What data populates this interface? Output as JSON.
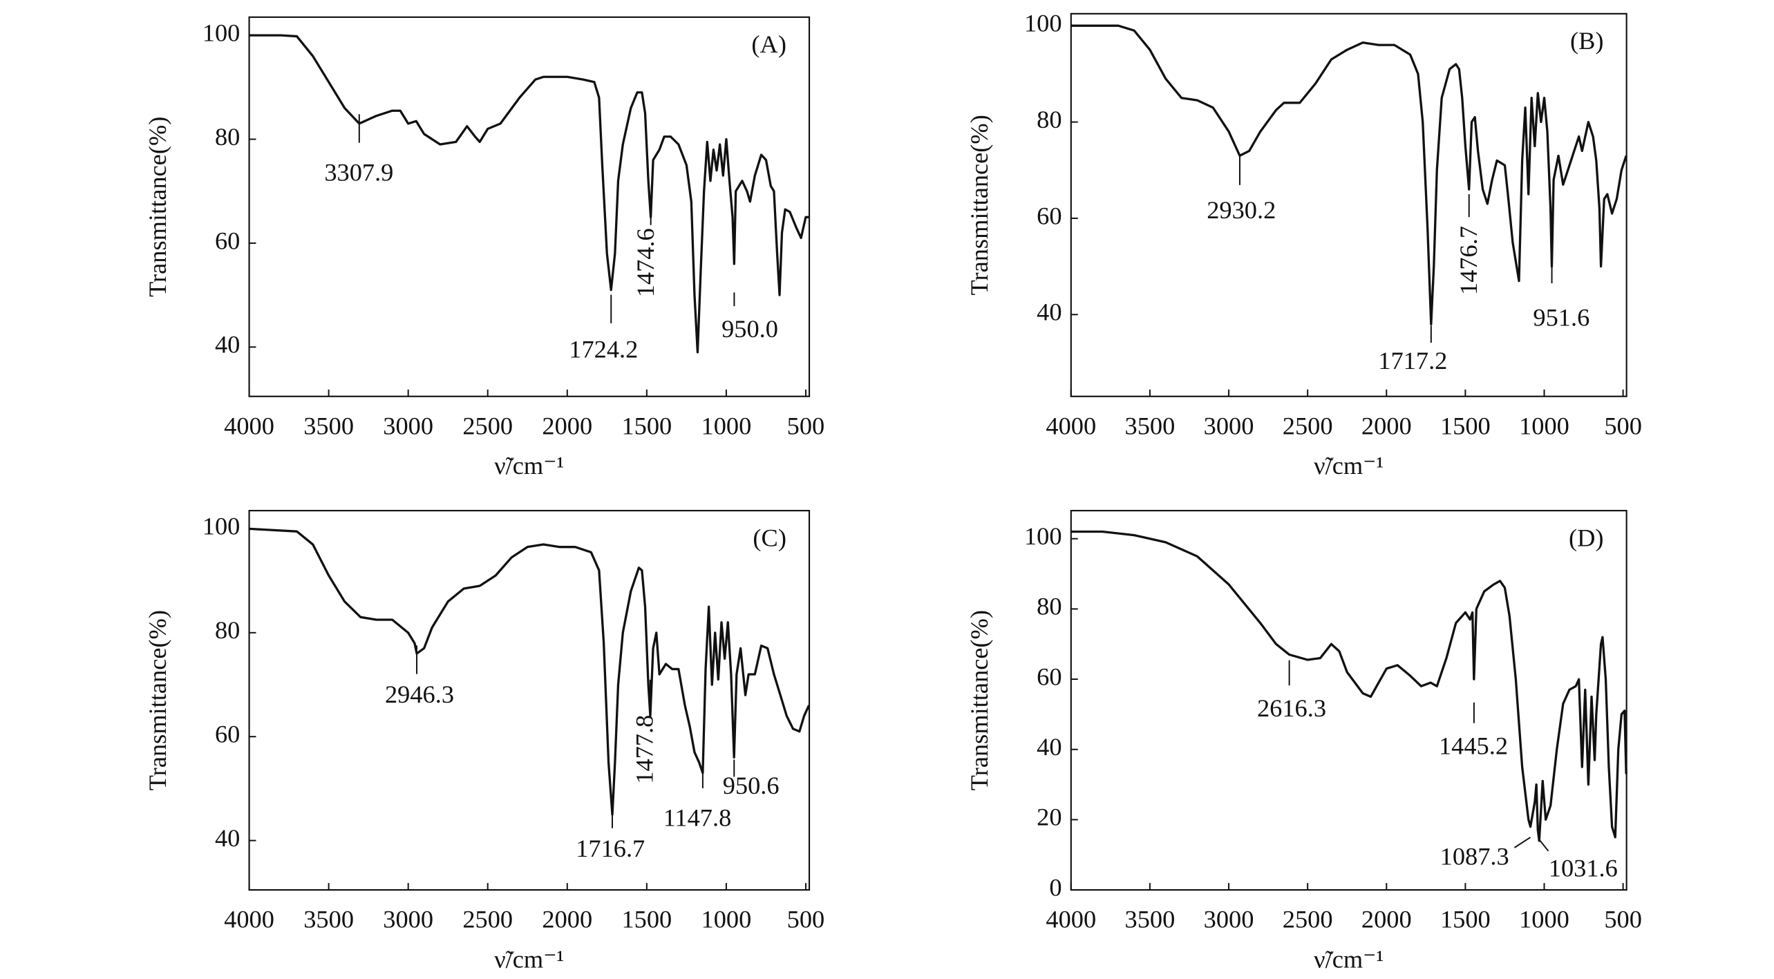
{
  "chart_data": [
    {
      "type": "line",
      "panel_label": "(A)",
      "x_label": "ν̃/cm⁻¹",
      "y_label": "Transmittance(%)",
      "color": "#111111",
      "xlim": [
        4000,
        478
      ],
      "ylim": [
        30.5,
        103.5
      ],
      "xticks": [
        4000,
        3500,
        3000,
        2500,
        2000,
        1500,
        1000,
        500
      ],
      "yticks": [
        40,
        60,
        80,
        100
      ],
      "x": [
        4000,
        3800,
        3700,
        3600,
        3500,
        3400,
        3307.9,
        3200,
        3100,
        3050,
        3000,
        2950,
        2900,
        2800,
        2700,
        2630,
        2580,
        2550,
        2500,
        2420,
        2300,
        2200,
        2150,
        2000,
        1900,
        1830,
        1800,
        1780,
        1750,
        1724.2,
        1700,
        1680,
        1650,
        1600,
        1560,
        1530,
        1510,
        1490,
        1474.6,
        1460,
        1420,
        1390,
        1350,
        1300,
        1250,
        1220,
        1200,
        1180,
        1160,
        1140,
        1120,
        1100,
        1080,
        1060,
        1040,
        1020,
        1000,
        980,
        960,
        950,
        940,
        900,
        870,
        850,
        820,
        780,
        750,
        720,
        700,
        680,
        665,
        650,
        630,
        600,
        560,
        530,
        500,
        480
      ],
      "values": [
        100,
        100,
        99.8,
        96,
        91,
        86,
        83,
        84.5,
        85.5,
        85.5,
        83,
        83.5,
        81,
        79,
        79.5,
        82.5,
        80.5,
        79.5,
        82,
        83,
        88,
        91.5,
        92,
        92,
        91.5,
        91,
        88,
        75,
        58,
        51,
        58,
        72,
        79,
        86,
        89,
        89,
        85,
        72,
        65,
        76,
        78,
        80.5,
        80.5,
        79,
        75,
        68,
        50,
        39,
        55,
        70,
        79.5,
        72,
        78,
        74,
        79,
        73,
        80,
        72,
        65,
        56,
        70,
        72,
        70,
        68,
        73,
        77,
        76,
        71,
        70,
        58,
        50,
        62,
        66.5,
        66,
        63,
        61,
        65,
        65
      ],
      "annotations": [
        {
          "text": "3307.9",
          "x": 3307.9
        },
        {
          "text": "1724.2",
          "x": 1724.2
        },
        {
          "text": "1474.6",
          "x": 1474.6
        },
        {
          "text": "950.0",
          "x": 950.0
        }
      ]
    },
    {
      "type": "line",
      "panel_label": "(B)",
      "x_label": "ν̃/cm⁻¹",
      "y_label": "Transmittance(%)",
      "color": "#111111",
      "xlim": [
        4000,
        478
      ],
      "ylim": [
        23,
        102.5
      ],
      "xticks": [
        4000,
        3500,
        3000,
        2500,
        2000,
        1500,
        1000,
        500
      ],
      "yticks": [
        40,
        60,
        80,
        100
      ],
      "x": [
        4000,
        3700,
        3600,
        3500,
        3400,
        3300,
        3200,
        3100,
        3000,
        2930.2,
        2870,
        2800,
        2700,
        2650,
        2550,
        2450,
        2350,
        2250,
        2150,
        2050,
        1950,
        1850,
        1800,
        1770,
        1740,
        1717.2,
        1700,
        1680,
        1650,
        1600,
        1560,
        1540,
        1520,
        1500,
        1476.7,
        1460,
        1440,
        1420,
        1390,
        1360,
        1330,
        1300,
        1250,
        1230,
        1200,
        1160,
        1140,
        1120,
        1100,
        1080,
        1060,
        1040,
        1020,
        1000,
        980,
        960,
        951.6,
        940,
        910,
        880,
        850,
        820,
        780,
        760,
        720,
        690,
        670,
        650,
        640,
        620,
        600,
        570,
        540,
        510,
        480
      ],
      "values": [
        100,
        100,
        99,
        95,
        89,
        85,
        84.5,
        83,
        78,
        73,
        74,
        78,
        82.5,
        84,
        84,
        88,
        93,
        95,
        96.5,
        96,
        96,
        94,
        90,
        80,
        58,
        38,
        50,
        70,
        85,
        91,
        92,
        91,
        85,
        75,
        66,
        80,
        81,
        74,
        66,
        63,
        68,
        72,
        71,
        65,
        55,
        47,
        72,
        83,
        65,
        85,
        75,
        86,
        80,
        85,
        78,
        62,
        50,
        68,
        73,
        67,
        70,
        73,
        77,
        74,
        80,
        77,
        72,
        62,
        50,
        64,
        65,
        61,
        64,
        70,
        73
      ],
      "annotations": [
        {
          "text": "2930.2",
          "x": 2930.2
        },
        {
          "text": "1717.2",
          "x": 1717.2
        },
        {
          "text": "1476.7",
          "x": 1476.7
        },
        {
          "text": "951.6",
          "x": 951.6
        }
      ]
    },
    {
      "type": "line",
      "panel_label": "(C)",
      "x_label": "ν̃/cm⁻¹",
      "y_label": "Transmittance(%)",
      "color": "#111111",
      "xlim": [
        4000,
        478
      ],
      "ylim": [
        30.5,
        103.5
      ],
      "xticks": [
        4000,
        3500,
        3000,
        2500,
        2000,
        1500,
        1000,
        500
      ],
      "yticks": [
        40,
        60,
        80,
        100
      ],
      "x": [
        4000,
        3700,
        3600,
        3500,
        3400,
        3300,
        3200,
        3100,
        3000,
        2960,
        2946.3,
        2900,
        2850,
        2750,
        2650,
        2550,
        2450,
        2350,
        2250,
        2150,
        2050,
        1950,
        1850,
        1800,
        1770,
        1740,
        1716.7,
        1700,
        1680,
        1650,
        1600,
        1550,
        1530,
        1510,
        1490,
        1477.8,
        1460,
        1440,
        1420,
        1380,
        1340,
        1300,
        1260,
        1230,
        1200,
        1170,
        1147.8,
        1130,
        1110,
        1090,
        1070,
        1050,
        1030,
        1010,
        990,
        970,
        950.6,
        935,
        910,
        880,
        860,
        820,
        780,
        740,
        700,
        660,
        620,
        580,
        540,
        510,
        480
      ],
      "values": [
        100,
        99.5,
        97,
        91,
        86,
        83,
        82.5,
        82.5,
        80,
        78,
        76,
        77,
        81,
        86,
        88.5,
        89,
        91,
        94.5,
        96.5,
        97,
        96.5,
        96.5,
        95.5,
        92,
        78,
        55,
        45,
        55,
        70,
        80,
        88,
        92.5,
        92,
        85,
        70,
        64,
        77,
        80,
        72,
        74,
        73,
        73,
        66,
        62,
        57,
        55,
        53,
        73,
        85,
        70,
        80,
        71,
        82,
        75,
        82,
        72,
        56,
        72,
        77,
        68,
        72,
        72,
        77.5,
        77,
        72,
        68,
        64,
        61.5,
        61,
        64,
        66
      ],
      "annotations": [
        {
          "text": "2946.3",
          "x": 2946.3
        },
        {
          "text": "1716.7",
          "x": 1716.7
        },
        {
          "text": "1477.8",
          "x": 1477.8
        },
        {
          "text": "1147.8",
          "x": 1147.8
        },
        {
          "text": "950.6",
          "x": 950.6
        }
      ]
    },
    {
      "type": "line",
      "panel_label": "(D)",
      "x_label": "ν̃/cm⁻¹",
      "y_label": "Transmittance(%)",
      "color": "#111111",
      "xlim": [
        4000,
        478
      ],
      "ylim": [
        0,
        108
      ],
      "xticks": [
        4000,
        3500,
        3000,
        2500,
        2000,
        1500,
        1000,
        500
      ],
      "yticks": [
        0,
        20,
        40,
        60,
        80,
        100
      ],
      "x": [
        4000,
        3800,
        3600,
        3400,
        3200,
        3000,
        2800,
        2700,
        2616.3,
        2500,
        2420,
        2350,
        2300,
        2250,
        2150,
        2100,
        2050,
        2000,
        1930,
        1850,
        1780,
        1720,
        1680,
        1620,
        1560,
        1500,
        1470,
        1455,
        1445.2,
        1430,
        1380,
        1320,
        1280,
        1250,
        1220,
        1180,
        1140,
        1100,
        1087.3,
        1060,
        1050,
        1040,
        1031.6,
        1010,
        990,
        960,
        920,
        880,
        840,
        800,
        780,
        760,
        740,
        720,
        700,
        680,
        670,
        640,
        630,
        610,
        590,
        570,
        550,
        530,
        510,
        490,
        480
      ],
      "values": [
        102,
        102,
        101,
        99,
        95,
        87,
        76,
        70,
        67,
        65.5,
        66,
        70,
        68,
        62,
        56,
        55,
        59,
        63,
        64,
        61,
        58,
        59,
        58,
        66,
        76,
        79,
        77,
        79,
        60,
        80,
        85,
        87,
        88,
        86,
        78,
        60,
        35,
        20,
        18,
        25,
        30,
        17,
        14,
        31,
        20,
        24,
        40,
        53,
        57,
        58,
        60,
        35,
        57,
        30,
        55,
        37,
        50,
        70,
        72,
        60,
        35,
        18,
        15,
        40,
        50,
        51,
        33
      ],
      "annotations": [
        {
          "text": "2616.3",
          "x": 2616.3
        },
        {
          "text": "1445.2",
          "x": 1445.2
        },
        {
          "text": "1087.3",
          "x": 1087.3
        },
        {
          "text": "1031.6",
          "x": 1031.6
        }
      ]
    }
  ]
}
